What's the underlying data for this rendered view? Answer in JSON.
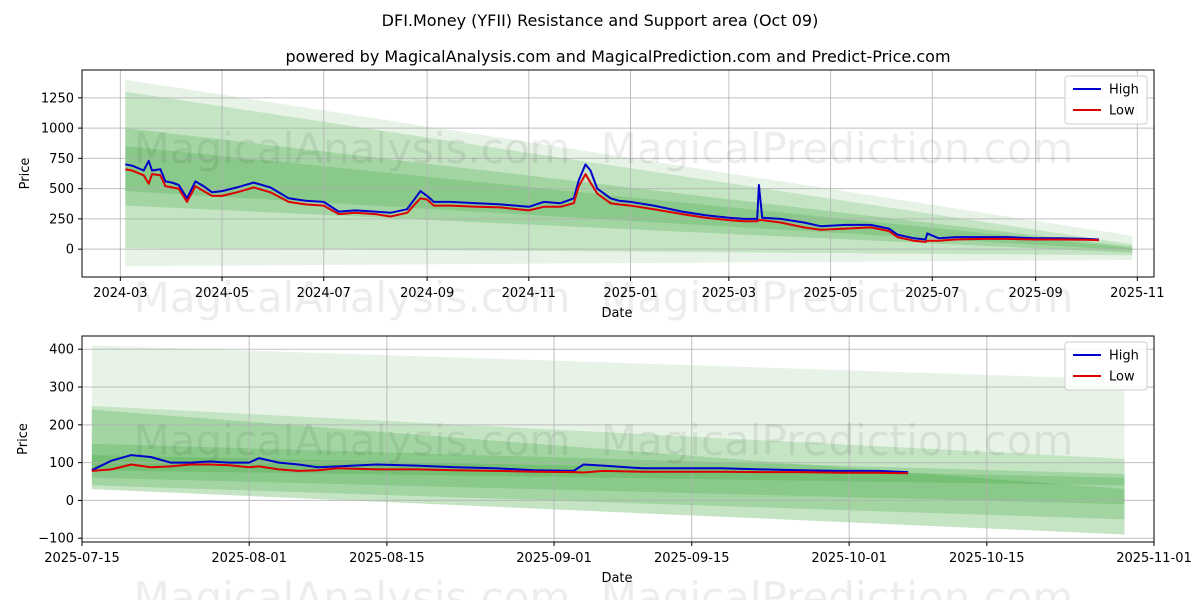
{
  "title": "DFI.Money (YFII) Resistance and Support area (Oct 09)",
  "subtitle": "powered by MagicalAnalysis.com and MagicalPrediction.com and Predict-Price.com",
  "watermarks": [
    "MagicalAnalysis.com",
    "MagicalPrediction.com"
  ],
  "colors": {
    "high": "#0000cc",
    "low": "#dd0000",
    "band": "#2e9e2e",
    "grid": "#b0b0b0"
  },
  "chart_data": [
    {
      "type": "line",
      "xlabel": "Date",
      "ylabel": "Price",
      "grid": true,
      "legend_position": "top-right",
      "x_type": "date",
      "xlim": [
        "2024-02-07",
        "2025-11-11"
      ],
      "ylim": [
        -230,
        1480
      ],
      "xticks": [
        "2024-03-01",
        "2024-05-01",
        "2024-07-01",
        "2024-09-01",
        "2024-11-01",
        "2025-01-01",
        "2025-03-01",
        "2025-05-01",
        "2025-07-01",
        "2025-09-01",
        "2025-11-01"
      ],
      "xtick_labels": [
        "2024-03",
        "2024-05",
        "2024-07",
        "2024-09",
        "2024-11",
        "2025-01",
        "2025-03",
        "2025-05",
        "2025-07",
        "2025-09",
        "2025-11"
      ],
      "yticks": [
        0,
        250,
        500,
        750,
        1000,
        1250
      ],
      "ytick_labels": [
        "0",
        "250",
        "500",
        "750",
        "1000",
        "1250"
      ],
      "bands": [
        {
          "start": "2024-03-04",
          "end": "2025-10-29",
          "upper": [
            1400,
            110
          ],
          "lower": [
            -140,
            -90
          ],
          "opacity": 0.12
        },
        {
          "start": "2024-03-04",
          "end": "2025-10-29",
          "upper": [
            1300,
            40
          ],
          "lower": [
            10,
            -50
          ],
          "opacity": 0.18
        },
        {
          "start": "2024-03-04",
          "end": "2025-10-29",
          "upper": [
            1000,
            20
          ],
          "lower": [
            360,
            -30
          ],
          "opacity": 0.22
        },
        {
          "start": "2024-03-04",
          "end": "2025-10-29",
          "upper": [
            850,
            10
          ],
          "lower": [
            480,
            -10
          ],
          "opacity": 0.22
        }
      ],
      "series": [
        {
          "name": "High",
          "x": [
            "2024-03-04",
            "2024-03-08",
            "2024-03-15",
            "2024-03-18",
            "2024-03-20",
            "2024-03-25",
            "2024-03-28",
            "2024-04-01",
            "2024-04-05",
            "2024-04-10",
            "2024-04-15",
            "2024-04-20",
            "2024-04-25",
            "2024-05-01",
            "2024-05-10",
            "2024-05-20",
            "2024-05-30",
            "2024-06-10",
            "2024-06-20",
            "2024-07-01",
            "2024-07-10",
            "2024-07-20",
            "2024-08-01",
            "2024-08-10",
            "2024-08-20",
            "2024-08-28",
            "2024-09-01",
            "2024-09-05",
            "2024-09-15",
            "2024-10-01",
            "2024-10-15",
            "2024-11-01",
            "2024-11-10",
            "2024-11-20",
            "2024-11-28",
            "2024-12-01",
            "2024-12-05",
            "2024-12-08",
            "2024-12-12",
            "2024-12-20",
            "2024-12-25",
            "2025-01-01",
            "2025-01-15",
            "2025-02-01",
            "2025-02-15",
            "2025-03-01",
            "2025-03-10",
            "2025-03-18",
            "2025-03-19",
            "2025-03-21",
            "2025-04-01",
            "2025-04-15",
            "2025-04-25",
            "2025-05-10",
            "2025-05-25",
            "2025-06-05",
            "2025-06-10",
            "2025-06-20",
            "2025-06-27",
            "2025-06-28",
            "2025-07-05",
            "2025-07-15",
            "2025-08-01",
            "2025-08-15",
            "2025-09-01",
            "2025-09-15",
            "2025-10-01",
            "2025-10-09"
          ],
          "values": [
            700,
            690,
            650,
            730,
            650,
            660,
            560,
            550,
            530,
            420,
            560,
            520,
            470,
            480,
            510,
            550,
            510,
            420,
            400,
            390,
            310,
            320,
            310,
            300,
            330,
            480,
            440,
            390,
            390,
            380,
            370,
            350,
            390,
            380,
            420,
            570,
            700,
            650,
            500,
            420,
            400,
            390,
            360,
            310,
            280,
            260,
            250,
            250,
            530,
            260,
            250,
            220,
            190,
            200,
            200,
            170,
            120,
            90,
            80,
            130,
            90,
            100,
            100,
            100,
            90,
            90,
            85,
            80
          ]
        },
        {
          "name": "Low",
          "x": [
            "2024-03-04",
            "2024-03-08",
            "2024-03-15",
            "2024-03-18",
            "2024-03-20",
            "2024-03-25",
            "2024-03-28",
            "2024-04-01",
            "2024-04-05",
            "2024-04-10",
            "2024-04-15",
            "2024-04-20",
            "2024-04-25",
            "2024-05-01",
            "2024-05-10",
            "2024-05-20",
            "2024-05-30",
            "2024-06-10",
            "2024-06-20",
            "2024-07-01",
            "2024-07-10",
            "2024-07-20",
            "2024-08-01",
            "2024-08-10",
            "2024-08-20",
            "2024-08-28",
            "2024-09-01",
            "2024-09-05",
            "2024-09-15",
            "2024-10-01",
            "2024-10-15",
            "2024-11-01",
            "2024-11-10",
            "2024-11-20",
            "2024-11-28",
            "2024-12-01",
            "2024-12-05",
            "2024-12-08",
            "2024-12-12",
            "2024-12-20",
            "2024-12-25",
            "2025-01-01",
            "2025-01-15",
            "2025-02-01",
            "2025-02-15",
            "2025-03-01",
            "2025-03-10",
            "2025-03-18",
            "2025-03-19",
            "2025-03-21",
            "2025-04-01",
            "2025-04-15",
            "2025-04-25",
            "2025-05-10",
            "2025-05-25",
            "2025-06-05",
            "2025-06-10",
            "2025-06-20",
            "2025-06-27",
            "2025-06-28",
            "2025-07-05",
            "2025-07-15",
            "2025-08-01",
            "2025-08-15",
            "2025-09-01",
            "2025-09-15",
            "2025-10-01",
            "2025-10-09"
          ],
          "values": [
            660,
            650,
            610,
            540,
            620,
            610,
            520,
            510,
            500,
            390,
            520,
            480,
            440,
            440,
            470,
            510,
            470,
            390,
            370,
            360,
            290,
            300,
            290,
            270,
            300,
            420,
            410,
            360,
            360,
            350,
            345,
            320,
            350,
            350,
            380,
            520,
            620,
            550,
            460,
            380,
            370,
            360,
            330,
            290,
            260,
            240,
            230,
            230,
            240,
            240,
            220,
            180,
            160,
            170,
            180,
            150,
            100,
            70,
            60,
            70,
            70,
            80,
            85,
            85,
            80,
            80,
            78,
            75
          ]
        }
      ]
    },
    {
      "type": "line",
      "xlabel": "Date",
      "ylabel": "Price",
      "grid": true,
      "legend_position": "top-right",
      "x_type": "date",
      "xlim": [
        "2025-07-15",
        "2025-11-01"
      ],
      "ylim": [
        -110,
        435
      ],
      "xticks": [
        "2025-07-15",
        "2025-08-01",
        "2025-08-15",
        "2025-09-01",
        "2025-09-15",
        "2025-10-01",
        "2025-10-15",
        "2025-11-01"
      ],
      "xtick_labels": [
        "2025-07-15",
        "2025-08-01",
        "2025-08-15",
        "2025-09-01",
        "2025-09-15",
        "2025-10-01",
        "2025-10-15",
        "2025-11-01"
      ],
      "yticks": [
        -100,
        0,
        100,
        200,
        300,
        400
      ],
      "ytick_labels": [
        "−100",
        "0",
        "100",
        "200",
        "300",
        "400"
      ],
      "bands": [
        {
          "start": "2025-07-16",
          "end": "2025-10-29",
          "upper": [
            410,
            320
          ],
          "lower": [
            30,
            -90
          ],
          "opacity": 0.12
        },
        {
          "start": "2025-07-16",
          "end": "2025-10-29",
          "upper": [
            250,
            110
          ],
          "lower": [
            30,
            -90
          ],
          "opacity": 0.18
        },
        {
          "start": "2025-07-16",
          "end": "2025-10-29",
          "upper": [
            240,
            30
          ],
          "lower": [
            40,
            -50
          ],
          "opacity": 0.22
        },
        {
          "start": "2025-07-16",
          "end": "2025-10-29",
          "upper": [
            150,
            70
          ],
          "lower": [
            60,
            -10
          ],
          "opacity": 0.22
        },
        {
          "start": "2025-07-16",
          "end": "2025-10-29",
          "upper": [
            120,
            60
          ],
          "lower": [
            80,
            40
          ],
          "opacity": 0.22
        }
      ],
      "series": [
        {
          "name": "High",
          "x": [
            "2025-07-16",
            "2025-07-18",
            "2025-07-20",
            "2025-07-22",
            "2025-07-24",
            "2025-07-26",
            "2025-07-28",
            "2025-07-30",
            "2025-08-01",
            "2025-08-02",
            "2025-08-04",
            "2025-08-06",
            "2025-08-08",
            "2025-08-10",
            "2025-08-14",
            "2025-08-18",
            "2025-08-22",
            "2025-08-26",
            "2025-08-30",
            "2025-09-03",
            "2025-09-04",
            "2025-09-06",
            "2025-09-10",
            "2025-09-14",
            "2025-09-18",
            "2025-09-22",
            "2025-09-26",
            "2025-09-30",
            "2025-10-04",
            "2025-10-07"
          ],
          "values": [
            80,
            105,
            120,
            115,
            100,
            100,
            103,
            100,
            100,
            112,
            100,
            95,
            88,
            90,
            95,
            92,
            88,
            85,
            80,
            78,
            95,
            92,
            85,
            85,
            85,
            82,
            80,
            78,
            78,
            75
          ]
        },
        {
          "name": "Low",
          "x": [
            "2025-07-16",
            "2025-07-18",
            "2025-07-20",
            "2025-07-22",
            "2025-07-24",
            "2025-07-26",
            "2025-07-28",
            "2025-07-30",
            "2025-08-01",
            "2025-08-02",
            "2025-08-04",
            "2025-08-06",
            "2025-08-08",
            "2025-08-10",
            "2025-08-14",
            "2025-08-18",
            "2025-08-22",
            "2025-08-26",
            "2025-08-30",
            "2025-09-03",
            "2025-09-04",
            "2025-09-06",
            "2025-09-10",
            "2025-09-14",
            "2025-09-18",
            "2025-09-22",
            "2025-09-26",
            "2025-09-30",
            "2025-10-04",
            "2025-10-07"
          ],
          "values": [
            78,
            82,
            95,
            88,
            90,
            95,
            95,
            93,
            88,
            90,
            82,
            78,
            80,
            85,
            82,
            82,
            80,
            78,
            76,
            75,
            74,
            78,
            76,
            76,
            76,
            75,
            75,
            73,
            73,
            72
          ]
        }
      ]
    }
  ]
}
